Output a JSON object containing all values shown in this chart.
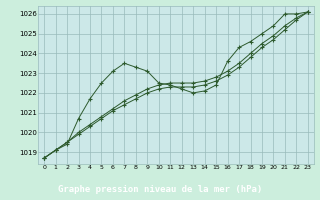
{
  "title": "Graphe pression niveau de la mer (hPa)",
  "bg_color": "#cceedd",
  "plot_bg": "#cce8e8",
  "grid_color": "#99bbbb",
  "line_color": "#2d5a2d",
  "label_bg": "#2d6a2d",
  "label_fg": "#ffffff",
  "xlim": [
    -0.5,
    23.5
  ],
  "ylim": [
    1018.4,
    1026.4
  ],
  "yticks": [
    1019,
    1020,
    1021,
    1022,
    1023,
    1024,
    1025,
    1026
  ],
  "xticks": [
    0,
    1,
    2,
    3,
    4,
    5,
    6,
    7,
    8,
    9,
    10,
    11,
    12,
    13,
    14,
    15,
    16,
    17,
    18,
    19,
    20,
    21,
    22,
    23
  ],
  "series1": [
    1018.7,
    1019.1,
    1019.4,
    1020.7,
    1021.7,
    1022.5,
    1023.1,
    1023.5,
    1023.3,
    1023.1,
    1022.5,
    1022.4,
    1022.2,
    1022.0,
    1022.1,
    1022.4,
    1023.6,
    1024.3,
    1024.6,
    1025.0,
    1025.4,
    1026.0,
    1026.0,
    1026.1
  ],
  "series2": [
    1018.7,
    1019.1,
    1019.5,
    1020.0,
    1020.4,
    1020.8,
    1021.2,
    1021.6,
    1021.9,
    1022.2,
    1022.4,
    1022.5,
    1022.5,
    1022.5,
    1022.6,
    1022.8,
    1023.1,
    1023.5,
    1024.0,
    1024.5,
    1024.9,
    1025.4,
    1025.8,
    1026.1
  ],
  "series3": [
    1018.7,
    1019.1,
    1019.5,
    1019.9,
    1020.3,
    1020.7,
    1021.1,
    1021.4,
    1021.7,
    1022.0,
    1022.2,
    1022.3,
    1022.3,
    1022.3,
    1022.4,
    1022.6,
    1022.9,
    1023.3,
    1023.8,
    1024.3,
    1024.7,
    1025.2,
    1025.7,
    1026.1
  ]
}
